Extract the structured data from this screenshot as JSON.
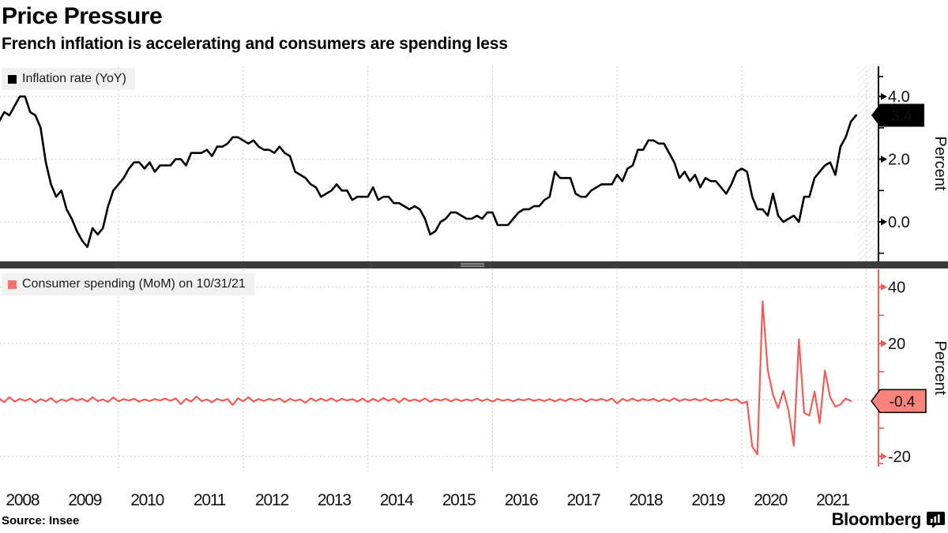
{
  "header": {
    "title": "Price Pressure",
    "subtitle": "French inflation is accelerating and consumers are spending less"
  },
  "colors": {
    "inflation_line": "#000000",
    "spending_line": "#f25b56",
    "grid": "#c9c9c9",
    "legend_bg": "#f1f1f1",
    "separator": "#3b3b3b",
    "flag_top_bg": "#000000",
    "flag_top_text": "#ffffff",
    "flag_bottom_bg": "#f8837d",
    "flag_bottom_text": "#000000",
    "hatch": "#dcdcdc"
  },
  "x_axis": {
    "start_year": 2008,
    "year_labels": [
      "2008",
      "2009",
      "2010",
      "2011",
      "2012",
      "2013",
      "2014",
      "2015",
      "2016",
      "2017",
      "2018",
      "2019",
      "2020",
      "2021"
    ],
    "grid_years": [
      2010,
      2012,
      2014,
      2016,
      2018,
      2020,
      2022
    ]
  },
  "chart_data": [
    {
      "type": "line",
      "slug": "inflation-rate",
      "legend": "Inflation rate (YoY)",
      "unit_label": "Percent",
      "x_start": "2008-01",
      "x_end": "2021-11",
      "x_frequency": "monthly",
      "ylim": [
        -1.25,
        4.95
      ],
      "yticks_major": {
        "values": [
          4.0,
          2.0,
          0.0
        ],
        "labels": [
          "4.0",
          "2.0",
          "0.0"
        ]
      },
      "yticks_minor": [
        3.0,
        1.0,
        -1.0
      ],
      "last_value": 3.4,
      "last_value_label": "3.4",
      "grid": "on",
      "legend_position": "top-left",
      "values": [
        3.2,
        3.2,
        3.5,
        3.4,
        3.7,
        4.0,
        4.0,
        3.5,
        3.4,
        3.0,
        1.9,
        1.2,
        0.8,
        1.0,
        0.4,
        0.1,
        -0.3,
        -0.6,
        -0.8,
        -0.2,
        -0.4,
        -0.2,
        0.5,
        1.0,
        1.2,
        1.4,
        1.7,
        1.9,
        1.9,
        1.7,
        1.9,
        1.6,
        1.8,
        1.8,
        1.8,
        2.0,
        2.0,
        1.8,
        2.2,
        2.2,
        2.2,
        2.3,
        2.1,
        2.4,
        2.4,
        2.5,
        2.7,
        2.7,
        2.6,
        2.5,
        2.6,
        2.4,
        2.3,
        2.3,
        2.2,
        2.4,
        2.2,
        2.1,
        1.6,
        1.5,
        1.4,
        1.2,
        1.1,
        0.8,
        0.9,
        1.0,
        1.2,
        1.0,
        1.0,
        0.7,
        0.8,
        0.8,
        0.8,
        1.1,
        0.7,
        0.8,
        0.8,
        0.6,
        0.6,
        0.5,
        0.4,
        0.5,
        0.4,
        0.1,
        -0.4,
        -0.3,
        0.0,
        0.1,
        0.3,
        0.3,
        0.2,
        0.1,
        0.1,
        0.2,
        0.1,
        0.3,
        0.3,
        -0.1,
        -0.1,
        -0.1,
        0.1,
        0.3,
        0.4,
        0.4,
        0.5,
        0.5,
        0.7,
        0.8,
        1.6,
        1.4,
        1.4,
        1.4,
        0.9,
        0.8,
        0.8,
        1.0,
        1.1,
        1.2,
        1.2,
        1.2,
        1.5,
        1.3,
        1.7,
        1.8,
        2.3,
        2.3,
        2.6,
        2.6,
        2.5,
        2.5,
        2.2,
        1.9,
        1.4,
        1.6,
        1.3,
        1.5,
        1.1,
        1.4,
        1.3,
        1.3,
        1.1,
        0.9,
        1.2,
        1.6,
        1.7,
        1.6,
        0.8,
        0.4,
        0.4,
        0.2,
        0.9,
        0.2,
        0.0,
        0.1,
        0.2,
        0.0,
        0.8,
        0.8,
        1.4,
        1.6,
        1.8,
        1.9,
        1.5,
        2.4,
        2.7,
        3.2,
        3.4
      ]
    },
    {
      "type": "line",
      "slug": "consumer-spending",
      "legend": "Consumer spending (MoM) on 10/31/21",
      "unit_label": "Percent",
      "x_start": "2008-01",
      "x_end": "2021-10",
      "x_frequency": "monthly",
      "ylim": [
        -26,
        45
      ],
      "yticks_major": {
        "values": [
          40,
          20,
          -20
        ],
        "labels": [
          "40",
          "20",
          "-20"
        ]
      },
      "yticks_minor": [
        30,
        10,
        -10
      ],
      "last_value": -0.4,
      "last_value_label": "-0.4",
      "grid": "on",
      "legend_position": "top-left",
      "values": [
        -2.2,
        0.6,
        -0.8,
        1.0,
        -0.6,
        0.4,
        -0.3,
        0.5,
        -0.9,
        0.3,
        -0.5,
        0.7,
        -0.9,
        0.2,
        -0.4,
        0.6,
        -0.2,
        0.4,
        -0.6,
        1.0,
        -0.4,
        0.2,
        -0.7,
        0.9,
        -0.5,
        0.3,
        -0.2,
        0.4,
        -0.6,
        0.2,
        -0.4,
        0.3,
        -0.2,
        0.5,
        -0.3,
        0.6,
        -1.5,
        0.4,
        -0.6,
        1.2,
        -0.4,
        0.2,
        -0.8,
        0.4,
        -0.3,
        0.3,
        -1.8,
        0.6,
        -0.5,
        1.0,
        -0.6,
        0.3,
        -0.4,
        0.4,
        -0.2,
        0.5,
        -0.8,
        0.4,
        -0.3,
        0.2,
        -1.0,
        0.6,
        -0.4,
        0.5,
        -0.3,
        0.6,
        -0.5,
        0.4,
        -0.2,
        0.3,
        -0.6,
        0.5,
        -0.8,
        0.4,
        -0.5,
        0.7,
        -0.3,
        0.5,
        -0.9,
        0.6,
        -0.4,
        0.2,
        -0.5,
        0.6,
        -0.7,
        0.3,
        -0.2,
        0.4,
        -0.5,
        0.3,
        -0.4,
        0.2,
        -0.3,
        0.5,
        -0.4,
        0.3,
        -0.6,
        0.4,
        -0.3,
        0.2,
        -0.5,
        0.3,
        -0.2,
        0.4,
        -0.3,
        0.2,
        -0.4,
        0.3,
        -0.5,
        0.3,
        -0.4,
        0.5,
        -0.2,
        0.4,
        -0.6,
        0.3,
        -0.2,
        0.4,
        -0.3,
        0.5,
        -1.2,
        0.4,
        -0.3,
        0.5,
        -0.4,
        0.3,
        -0.2,
        0.4,
        -0.5,
        0.3,
        -0.4,
        0.6,
        -0.4,
        0.3,
        -0.2,
        0.4,
        -0.3,
        0.5,
        -0.4,
        0.2,
        -0.3,
        0.4,
        -0.2,
        0.3,
        -1.2,
        -0.6,
        -16.5,
        -19.3,
        35.0,
        10.5,
        1.8,
        -2.9,
        3.2,
        -3.8,
        -16.2,
        21.5,
        -4.6,
        -5.5,
        3.0,
        -8.2,
        10.4,
        1.0,
        -2.4,
        -1.6,
        0.5,
        -0.4
      ]
    }
  ],
  "footer": {
    "source": "Source: Insee",
    "brand": "Bloomberg",
    "brand_icon": "bloomberg-terminal-icon"
  }
}
